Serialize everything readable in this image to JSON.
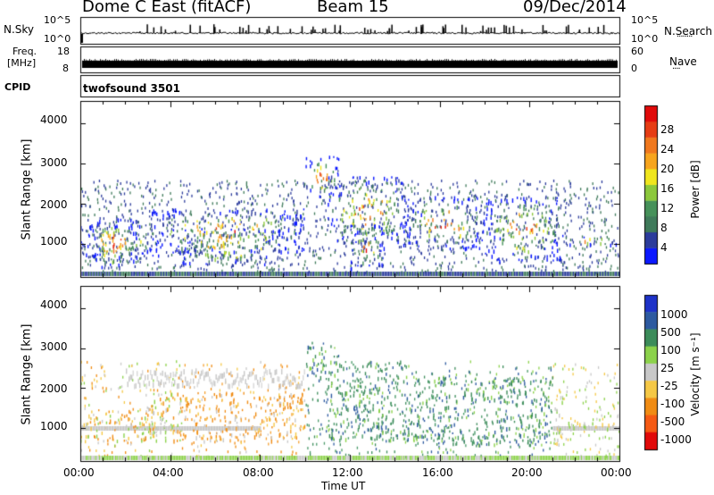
{
  "header": {
    "station": "Dome C East (fitACF)",
    "beam": "Beam 15",
    "date": "09/Dec/2014"
  },
  "panels": {
    "nsky_label": "N.Sky",
    "nsky_ticks": [
      "10^5",
      "10^0"
    ],
    "nsearch_label": "N.Search",
    "freq_label_line1": "Freq.",
    "freq_label_line2": "[MHz]",
    "freq_ticks": [
      "18",
      "8"
    ],
    "nave_label": "Nave",
    "nave_ticks": [
      "60",
      "0"
    ],
    "cpid_label": "CPID",
    "cpid_name": "twofsound 3501"
  },
  "colorbars": {
    "power_label": "Power [dB]",
    "power_ticks": [
      "28",
      "24",
      "20",
      "16",
      "12",
      "8",
      "4"
    ],
    "power_colors": [
      "#0b18ff",
      "#2c3c9c",
      "#3f7a5a",
      "#46915a",
      "#8cc83c",
      "#f0e61e",
      "#f7a51e",
      "#f0781e",
      "#e63c14",
      "#e10a0a"
    ],
    "velocity_label": "Velocity [m s⁻¹]",
    "velocity_ticks": [
      "1000",
      "500",
      "100",
      "25",
      "-25",
      "-100",
      "-500",
      "-1000"
    ],
    "velocity_colors": [
      "#e10a0a",
      "#f55a14",
      "#f08c14",
      "#f5c846",
      "#c8c8c8",
      "#8cd24b",
      "#3c8c5a",
      "#2d5aa0",
      "#1e32c8"
    ]
  },
  "axes": {
    "ylabel": "Slant Range [km]",
    "yticks": [
      "4000",
      "3000",
      "2000",
      "1000"
    ],
    "xticks": [
      "00:00",
      "04:00",
      "08:00",
      "12:00",
      "16:00",
      "20:00",
      "00:00"
    ],
    "xlabel": "Time UT"
  },
  "chart_data": [
    {
      "type": "heatmap",
      "title": "",
      "xlabel": "",
      "ylabel": "Slant Range [km]",
      "xlim": [
        0,
        24
      ],
      "ylim": [
        180,
        4550
      ],
      "colorbar_label": "Power [dB]",
      "colorbar_range": [
        0,
        32
      ],
      "scatter_regions_hours_km": [
        [
          0.0,
          3.5,
          700,
          1500
        ],
        [
          0.5,
          2.5,
          400,
          1700
        ],
        [
          3.0,
          10.0,
          800,
          1900
        ],
        [
          4.5,
          9.0,
          500,
          1400
        ],
        [
          10.0,
          11.5,
          2200,
          3200
        ],
        [
          11.0,
          14.5,
          1000,
          2700
        ],
        [
          12.0,
          13.5,
          400,
          1500
        ],
        [
          14.5,
          18.0,
          900,
          2200
        ],
        [
          18.0,
          21.5,
          600,
          2200
        ],
        [
          21.5,
          24.0,
          1000,
          1200
        ]
      ]
    },
    {
      "type": "heatmap",
      "title": "",
      "xlabel": "Time UT",
      "ylabel": "Slant Range [km]",
      "xlim": [
        0,
        24
      ],
      "ylim": [
        180,
        4550
      ],
      "colorbar_label": "Velocity [m s⁻¹]",
      "colorbar_ticks": [
        1000,
        500,
        100,
        25,
        -25,
        -100,
        -500,
        -1000
      ],
      "scatter_regions_hours_km": [
        [
          0.0,
          3.5,
          700,
          1500
        ],
        [
          3.0,
          10.0,
          700,
          1900
        ],
        [
          10.0,
          11.5,
          2200,
          3200
        ],
        [
          11.0,
          14.5,
          700,
          2700
        ],
        [
          14.5,
          18.0,
          600,
          2300
        ],
        [
          18.0,
          21.5,
          600,
          2300
        ],
        [
          21.5,
          24.0,
          1000,
          1200
        ]
      ]
    }
  ]
}
